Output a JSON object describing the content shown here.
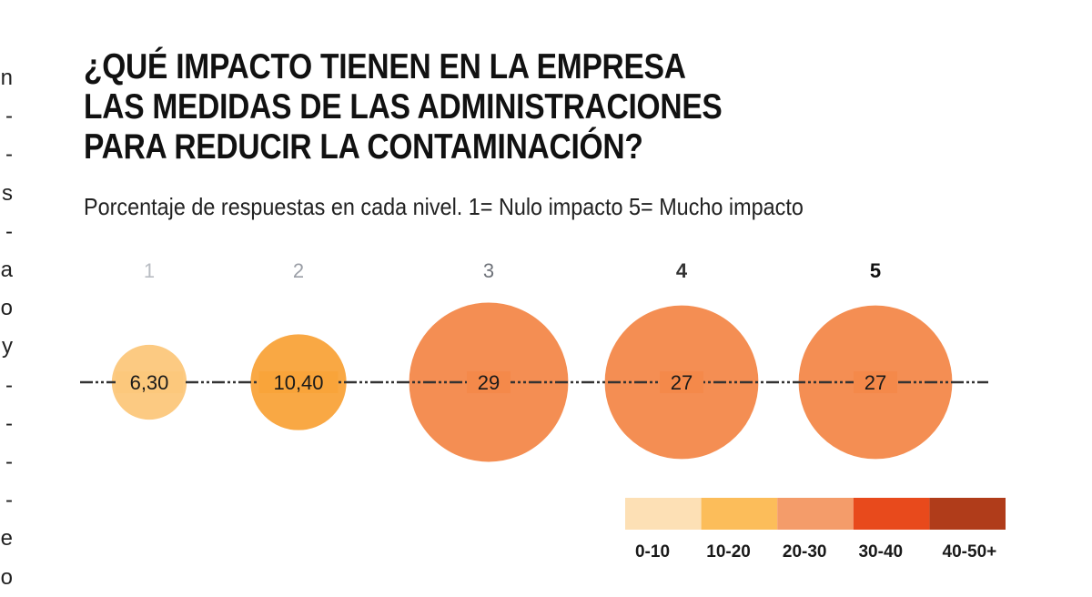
{
  "left_column_fragments": [
    "n",
    "-",
    "-",
    "s",
    "-",
    "a",
    "o",
    "y",
    "-",
    "-",
    "-",
    "-",
    "e",
    "o"
  ],
  "chart_data": {
    "type": "bubble",
    "title_lines": [
      "¿QUÉ IMPACTO TIENEN EN LA EMPRESA",
      "LAS MEDIDAS DE LAS ADMINISTRACIONES",
      "PARA REDUCIR LA CONTAMINACIÓN?"
    ],
    "subtitle": "Porcentaje de respuestas en cada nivel.  1= Nulo impacto 5= Mucho impacto",
    "categories": [
      "1",
      "2",
      "3",
      "4",
      "5"
    ],
    "values": [
      6.3,
      10.4,
      29,
      27,
      27
    ],
    "value_labels": [
      "6,30",
      "10,40",
      "29",
      "27",
      "27"
    ],
    "bubble_colors": [
      "#fcc87c",
      "#f9a43a",
      "#f4894a",
      "#f4894a",
      "#f4894a"
    ],
    "category_label_colors": [
      "#b8bcc2",
      "#9a9ea6",
      "#6f737a",
      "#333333",
      "#111111"
    ],
    "legend": {
      "placement": "bottom-right",
      "bins": [
        {
          "label": "0-10",
          "color": "#fde0b5"
        },
        {
          "label": "10-20",
          "color": "#fcbd5a"
        },
        {
          "label": "20-30",
          "color": "#f49c6a"
        },
        {
          "label": "30-40",
          "color": "#e84a1c"
        },
        {
          "label": "40-50+",
          "color": "#b03c1a"
        }
      ]
    }
  }
}
